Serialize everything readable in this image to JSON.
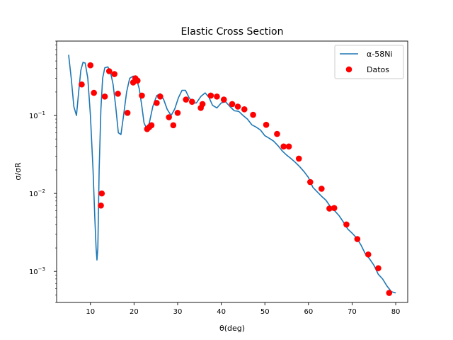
{
  "chart_data": {
    "type": "line",
    "title": "Elastic Cross Section",
    "xlabel": "θ(deg)",
    "ylabel": "σ/σR",
    "xlim": [
      2.25,
      82.75
    ],
    "ylim": [
      0.0004,
      0.9
    ],
    "yscale": "log",
    "grid": false,
    "legend_position": "top-right",
    "x_ticks": [
      10,
      20,
      30,
      40,
      50,
      60,
      70,
      80
    ],
    "x_tick_labels": [
      "10",
      "20",
      "30",
      "40",
      "50",
      "60",
      "70",
      "80"
    ],
    "y_ticks": [
      0.001,
      0.01,
      0.1
    ],
    "y_tick_labels": [
      "10",
      "10",
      "10"
    ],
    "y_tick_exponents": [
      "−3",
      "−2",
      "−1"
    ],
    "series": [
      {
        "name": "α-58Ni",
        "type": "line",
        "color": "#1f77b4",
        "x": [
          5,
          5.6,
          6.2,
          6.8,
          7.3,
          7.8,
          8.3,
          8.8,
          9.4,
          10.0,
          10.6,
          11.0,
          11.3,
          11.5,
          11.7,
          12.0,
          12.4,
          12.8,
          13.3,
          14.0,
          14.6,
          15.2,
          15.8,
          16.4,
          17.0,
          17.6,
          18.3,
          19.0,
          19.8,
          20.6,
          21.2,
          21.8,
          22.3,
          22.9,
          23.5,
          24.3,
          25.2,
          26.0,
          26.8,
          27.6,
          28.5,
          29.3,
          30.2,
          31.0,
          31.8,
          32.6,
          33.5,
          34.3,
          35.3,
          36.3,
          37.2,
          38.0,
          39.0,
          40.0,
          41.0,
          42.0,
          43.0,
          44.0,
          45.0,
          46.0,
          47.0,
          48.0,
          49.0,
          50.0,
          51.0,
          52.0,
          53.0,
          54.0,
          55.0,
          56.0,
          57.0,
          58.0,
          59.0,
          60.0,
          61.0,
          62.0,
          63.0,
          64.0,
          65.0,
          66.0,
          67.0,
          68.0,
          69.0,
          70.0,
          71.0,
          72.0,
          73.0,
          74.0,
          75.0,
          76.0,
          77.0,
          78.0,
          79.0,
          80.0
        ],
        "y": [
          0.6,
          0.3,
          0.13,
          0.1,
          0.2,
          0.38,
          0.48,
          0.47,
          0.3,
          0.1,
          0.02,
          0.005,
          0.002,
          0.0014,
          0.002,
          0.02,
          0.12,
          0.3,
          0.41,
          0.42,
          0.36,
          0.25,
          0.13,
          0.06,
          0.057,
          0.1,
          0.2,
          0.3,
          0.32,
          0.29,
          0.22,
          0.13,
          0.08,
          0.068,
          0.08,
          0.13,
          0.18,
          0.19,
          0.16,
          0.12,
          0.1,
          0.12,
          0.17,
          0.21,
          0.21,
          0.17,
          0.145,
          0.145,
          0.175,
          0.195,
          0.17,
          0.135,
          0.125,
          0.145,
          0.15,
          0.13,
          0.115,
          0.113,
          0.1,
          0.09,
          0.076,
          0.071,
          0.065,
          0.055,
          0.051,
          0.047,
          0.041,
          0.035,
          0.031,
          0.028,
          0.025,
          0.022,
          0.019,
          0.016,
          0.012,
          0.0105,
          0.0092,
          0.0082,
          0.0068,
          0.006,
          0.0052,
          0.0043,
          0.0035,
          0.0031,
          0.0027,
          0.0022,
          0.0017,
          0.00145,
          0.0012,
          0.00092,
          0.0008,
          0.00065,
          0.00055,
          0.00053
        ]
      },
      {
        "name": "Datos",
        "type": "scatter",
        "color": "#ff0000",
        "x": [
          8.0,
          10.0,
          10.8,
          12.4,
          12.6,
          13.3,
          14.3,
          15.5,
          16.3,
          18.5,
          19.8,
          20.3,
          20.8,
          21.8,
          23.0,
          23.5,
          24.0,
          25.2,
          26.0,
          28.0,
          29.0,
          30.0,
          31.9,
          33.3,
          35.3,
          35.7,
          37.6,
          39.0,
          40.6,
          42.5,
          43.8,
          45.3,
          47.3,
          50.3,
          52.8,
          54.3,
          55.5,
          57.8,
          60.4,
          63.0,
          64.8,
          65.9,
          68.7,
          71.2,
          73.7,
          76.0,
          78.5
        ],
        "y": [
          0.25,
          0.44,
          0.195,
          0.007,
          0.01,
          0.175,
          0.37,
          0.34,
          0.19,
          0.108,
          0.265,
          0.3,
          0.28,
          0.18,
          0.067,
          0.071,
          0.075,
          0.145,
          0.175,
          0.095,
          0.075,
          0.108,
          0.16,
          0.15,
          0.125,
          0.14,
          0.18,
          0.175,
          0.16,
          0.14,
          0.13,
          0.12,
          0.102,
          0.076,
          0.058,
          0.04,
          0.04,
          0.028,
          0.014,
          0.0115,
          0.0064,
          0.0065,
          0.004,
          0.0026,
          0.00165,
          0.0011,
          0.00053
        ]
      }
    ]
  }
}
